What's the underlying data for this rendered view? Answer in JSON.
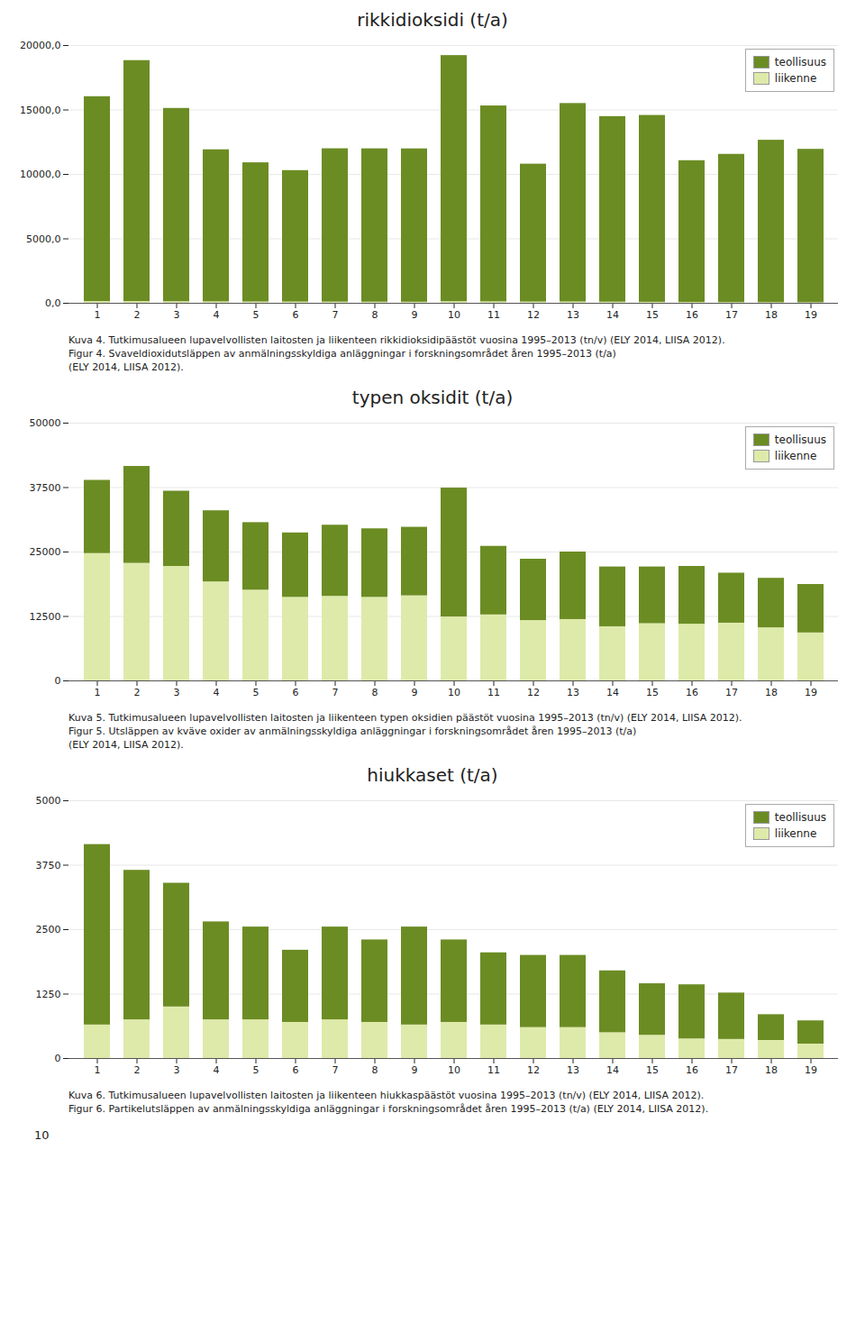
{
  "chart_data": [
    {
      "type": "bar",
      "stacked": true,
      "title": "rikkidioksidi (t/a)",
      "categories": [
        "1",
        "2",
        "3",
        "4",
        "5",
        "6",
        "7",
        "8",
        "9",
        "10",
        "11",
        "12",
        "13",
        "14",
        "15",
        "16",
        "17",
        "18",
        "19"
      ],
      "series": [
        {
          "name": "liikenne",
          "color": "#deeaaa",
          "values": [
            130,
            130,
            120,
            110,
            100,
            95,
            90,
            85,
            80,
            120,
            110,
            95,
            100,
            85,
            75,
            65,
            55,
            50,
            45
          ]
        },
        {
          "name": "teollisuus",
          "color": "#6b8c23",
          "values": [
            15900,
            18700,
            15000,
            11800,
            10800,
            10200,
            11900,
            11900,
            11900,
            19100,
            15200,
            10700,
            15400,
            14400,
            14500,
            11000,
            11500,
            12600,
            11900
          ]
        }
      ],
      "ylim": [
        0,
        20000
      ],
      "yticks": [
        {
          "value": 0,
          "label": "0,0"
        },
        {
          "value": 5000,
          "label": "5000,0"
        },
        {
          "value": 10000,
          "label": "10000,0"
        },
        {
          "value": 15000,
          "label": "15000,0"
        },
        {
          "value": 20000,
          "label": "20000,0"
        }
      ],
      "grid": true,
      "legend": "upper right",
      "caption": [
        "Kuva 4. Tutkimusalueen lupavelvollisten laitosten ja liikenteen rikkidioksidipäästöt vuosina 1995–2013 (tn/v) (ELY 2014, LIISA 2012).",
        "Figur 4. Svaveldioxidutsläppen av anmälningsskyldiga anläggningar i forskningsområdet åren 1995–2013 (t/a)",
        "(ELY 2014, LIISA 2012)."
      ]
    },
    {
      "type": "bar",
      "stacked": true,
      "title": "typen oksidit (t/a)",
      "categories": [
        "1",
        "2",
        "3",
        "4",
        "5",
        "6",
        "7",
        "8",
        "9",
        "10",
        "11",
        "12",
        "13",
        "14",
        "15",
        "16",
        "17",
        "18",
        "19"
      ],
      "series": [
        {
          "name": "liikenne",
          "color": "#deeaaa",
          "values": [
            24700,
            22800,
            22200,
            19200,
            17600,
            16200,
            16400,
            16200,
            16500,
            12400,
            12800,
            11700,
            11900,
            10500,
            11100,
            11000,
            11200,
            10300,
            9300
          ]
        },
        {
          "name": "teollisuus",
          "color": "#6b8c23",
          "values": [
            14200,
            18800,
            14600,
            13800,
            13100,
            12500,
            13800,
            13300,
            13300,
            25000,
            13300,
            11900,
            13100,
            11600,
            11000,
            11200,
            9700,
            9600,
            9400
          ]
        }
      ],
      "ylim": [
        0,
        50000
      ],
      "yticks": [
        0,
        12500,
        25000,
        37500,
        50000
      ],
      "grid": true,
      "legend": "upper right",
      "caption": [
        "Kuva 5. Tutkimusalueen lupavelvollisten laitosten ja liikenteen typen oksidien päästöt vuosina 1995–2013 (tn/v) (ELY 2014, LIISA 2012).",
        "Figur 5. Utsläppen av kväve oxider av anmälningsskyldiga anläggningar i forskningsområdet åren 1995–2013 (t/a)",
        "(ELY 2014, LIISA 2012)."
      ]
    },
    {
      "type": "bar",
      "stacked": true,
      "title": "hiukkaset (t/a)",
      "categories": [
        "1",
        "2",
        "3",
        "4",
        "5",
        "6",
        "7",
        "8",
        "9",
        "10",
        "11",
        "12",
        "13",
        "14",
        "15",
        "16",
        "17",
        "18",
        "19"
      ],
      "series": [
        {
          "name": "liikenne",
          "color": "#deeaaa",
          "values": [
            650,
            750,
            1000,
            750,
            750,
            700,
            750,
            700,
            650,
            700,
            650,
            600,
            600,
            500,
            450,
            380,
            370,
            350,
            280
          ]
        },
        {
          "name": "teollisuus",
          "color": "#6b8c23",
          "values": [
            3500,
            2900,
            2400,
            1900,
            1800,
            1400,
            1800,
            1600,
            1900,
            1600,
            1400,
            1400,
            1400,
            1200,
            1000,
            1050,
            900,
            500,
            450
          ]
        }
      ],
      "ylim": [
        0,
        5000
      ],
      "yticks": [
        0,
        1250,
        2500,
        3750,
        5000
      ],
      "grid": true,
      "legend": "upper right",
      "caption": [
        "Kuva 6. Tutkimusalueen lupavelvollisten laitosten ja liikenteen hiukkaspäästöt vuosina 1995–2013 (tn/v) (ELY 2014, LIISA 2012).",
        "Figur 6. Partikelutsläppen av anmälningsskyldiga anläggningar i forskningsområdet åren 1995–2013 (t/a) (ELY 2014, LIISA 2012)."
      ]
    }
  ],
  "page_number": "10"
}
